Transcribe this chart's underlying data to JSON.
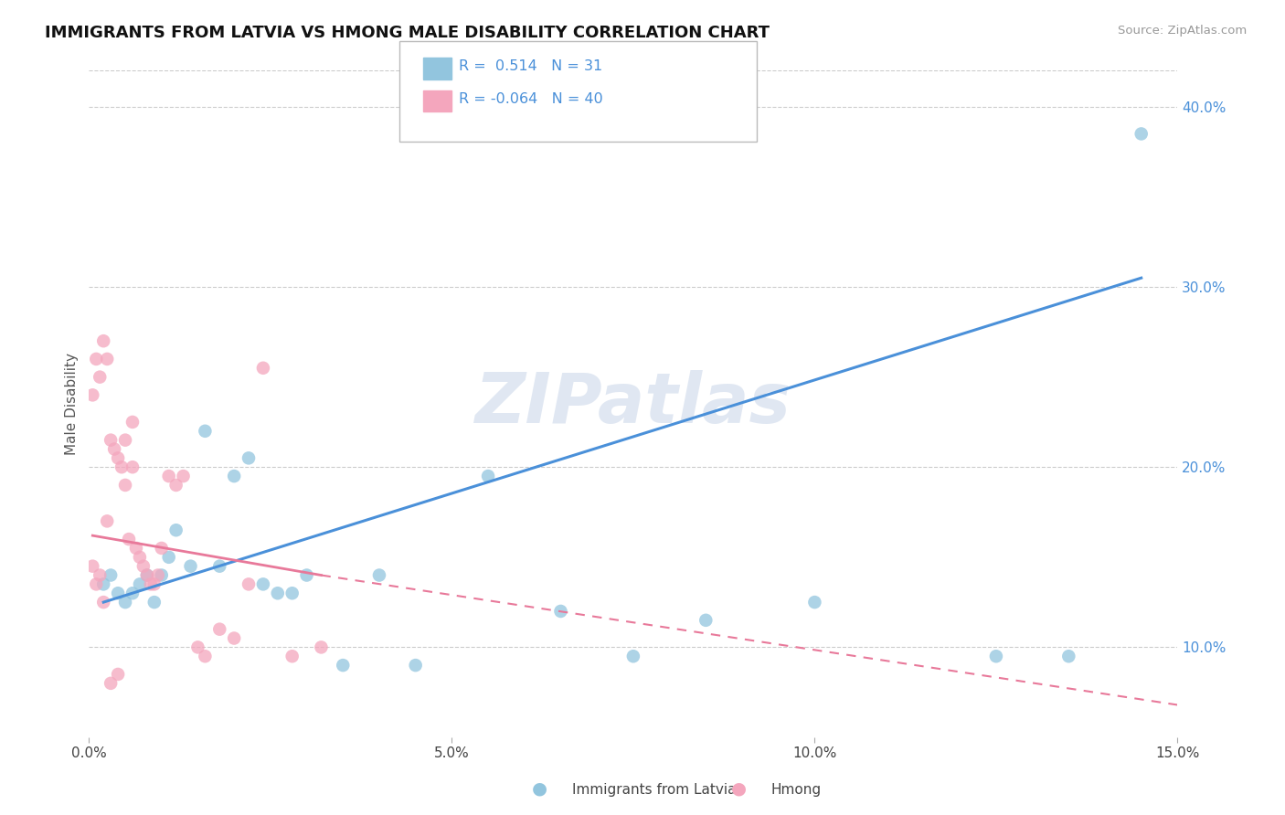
{
  "title": "IMMIGRANTS FROM LATVIA VS HMONG MALE DISABILITY CORRELATION CHART",
  "source": "Source: ZipAtlas.com",
  "ylabel": "Male Disability",
  "legend_labels": [
    "Immigrants from Latvia",
    "Hmong"
  ],
  "R_blue": 0.514,
  "N_blue": 31,
  "R_pink": -0.064,
  "N_pink": 40,
  "xlim": [
    0.0,
    15.0
  ],
  "ylim": [
    5.0,
    42.0
  ],
  "x_ticks": [
    0.0,
    5.0,
    10.0,
    15.0
  ],
  "x_tick_labels": [
    "0.0%",
    "5.0%",
    "10.0%",
    "15.0%"
  ],
  "y_ticks_right": [
    10.0,
    20.0,
    30.0,
    40.0
  ],
  "y_tick_labels_right": [
    "10.0%",
    "20.0%",
    "30.0%",
    "40.0%"
  ],
  "watermark": "ZIPatlas",
  "blue_color": "#92c5de",
  "pink_color": "#f4a6bd",
  "blue_line_color": "#4a90d9",
  "pink_line_color": "#e8799a",
  "blue_scatter_x": [
    0.2,
    0.3,
    0.4,
    0.5,
    0.6,
    0.7,
    0.8,
    0.9,
    1.0,
    1.1,
    1.2,
    1.4,
    1.6,
    1.8,
    2.0,
    2.2,
    2.4,
    2.6,
    2.8,
    3.0,
    3.5,
    4.0,
    4.5,
    5.5,
    6.5,
    7.5,
    8.5,
    10.0,
    12.5,
    13.5,
    14.5
  ],
  "blue_scatter_y": [
    13.5,
    14.0,
    13.0,
    12.5,
    13.0,
    13.5,
    14.0,
    12.5,
    14.0,
    15.0,
    16.5,
    14.5,
    22.0,
    14.5,
    19.5,
    20.5,
    13.5,
    13.0,
    13.0,
    14.0,
    9.0,
    14.0,
    9.0,
    19.5,
    12.0,
    9.5,
    11.5,
    12.5,
    9.5,
    9.5,
    38.5
  ],
  "pink_scatter_x": [
    0.05,
    0.1,
    0.15,
    0.2,
    0.25,
    0.3,
    0.35,
    0.4,
    0.45,
    0.5,
    0.55,
    0.6,
    0.65,
    0.7,
    0.75,
    0.8,
    0.85,
    0.9,
    0.95,
    1.0,
    1.1,
    1.2,
    1.3,
    1.5,
    1.6,
    1.8,
    2.0,
    2.2,
    2.4,
    2.8,
    3.2,
    0.1,
    0.2,
    0.3,
    0.4,
    0.5,
    0.6,
    0.05,
    0.15,
    0.25
  ],
  "pink_scatter_y": [
    14.5,
    13.5,
    14.0,
    12.5,
    17.0,
    21.5,
    21.0,
    20.5,
    20.0,
    19.0,
    16.0,
    20.0,
    15.5,
    15.0,
    14.5,
    14.0,
    13.5,
    13.5,
    14.0,
    15.5,
    19.5,
    19.0,
    19.5,
    10.0,
    9.5,
    11.0,
    10.5,
    13.5,
    25.5,
    9.5,
    10.0,
    26.0,
    27.0,
    8.0,
    8.5,
    21.5,
    22.5,
    24.0,
    25.0,
    26.0
  ],
  "blue_line_x0": 0.2,
  "blue_line_x1": 14.5,
  "blue_line_y0": 12.5,
  "blue_line_y1": 30.5,
  "pink_solid_x0": 0.05,
  "pink_solid_x1": 3.2,
  "pink_solid_y0": 16.2,
  "pink_solid_y1": 14.0,
  "pink_dash_x0": 3.2,
  "pink_dash_x1": 15.0,
  "pink_dash_y0": 14.0,
  "pink_dash_y1": 6.8,
  "background_color": "#ffffff",
  "grid_color": "#cccccc"
}
